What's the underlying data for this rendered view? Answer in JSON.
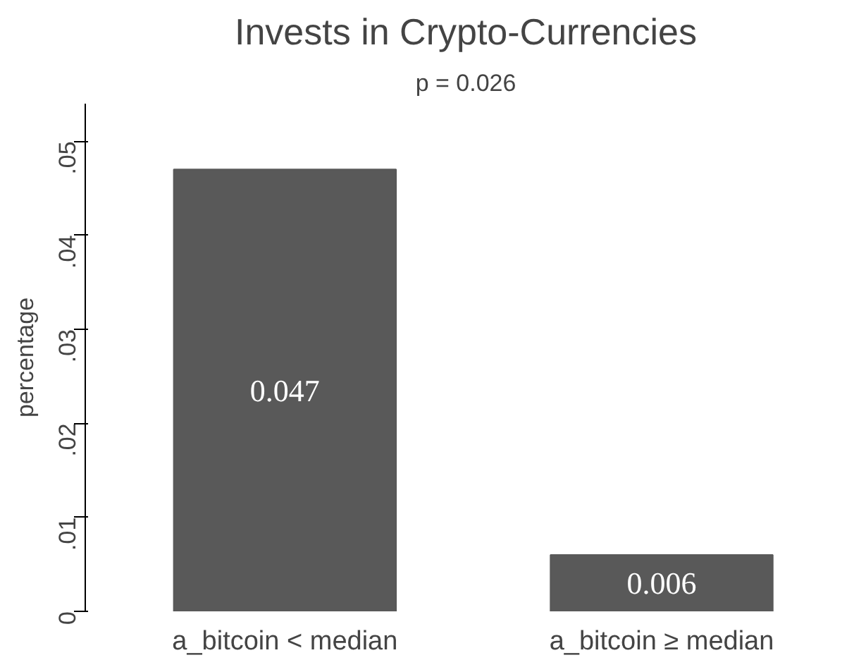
{
  "chart_data": {
    "type": "bar",
    "title": "Invests in Crypto-Currencies",
    "subtitle": "p = 0.026",
    "ylabel": "percentage",
    "categories": [
      "a_bitcoin < median",
      "a_bitcoin ≥ median"
    ],
    "values": [
      0.047,
      0.006
    ],
    "color": "#595959",
    "data_labels": true,
    "ylim": [
      0,
      0.054
    ],
    "yticks": [
      0,
      {
        "value": 0.01,
        "label": ".01"
      },
      {
        "value": 0.02,
        "label": ".02"
      },
      {
        "value": 0.03,
        "label": ".03"
      },
      {
        "value": 0.04,
        "label": ".04"
      },
      {
        "value": 0.05,
        "label": ".05"
      }
    ],
    "grid": false
  }
}
